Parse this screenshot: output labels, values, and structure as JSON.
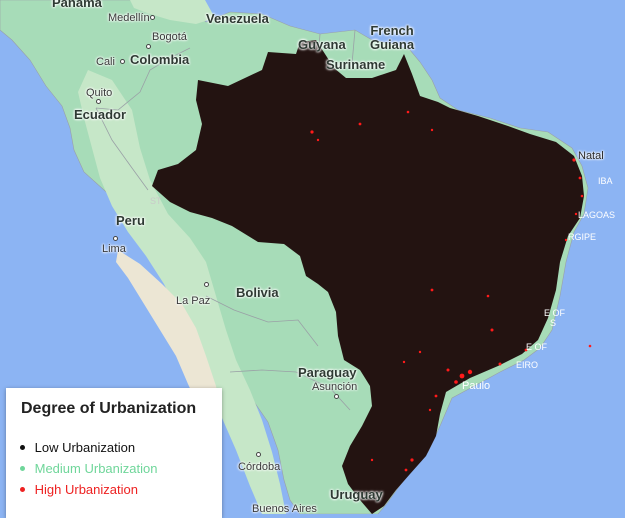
{
  "map": {
    "countries": [
      {
        "id": "panama",
        "label": "Panama"
      },
      {
        "id": "venezuela",
        "label": "Venezuela"
      },
      {
        "id": "colombia",
        "label": "Colombia"
      },
      {
        "id": "guyana",
        "label": "Guyana"
      },
      {
        "id": "french-guiana",
        "label": "French\nGuiana"
      },
      {
        "id": "suriname",
        "label": "Suriname"
      },
      {
        "id": "ecuador",
        "label": "Ecuador"
      },
      {
        "id": "peru",
        "label": "Peru"
      },
      {
        "id": "bolivia",
        "label": "Bolivia"
      },
      {
        "id": "paraguay",
        "label": "Paraguay"
      },
      {
        "id": "uruguay",
        "label": "Uruguay"
      }
    ],
    "cities": [
      {
        "id": "medellin",
        "label": "Medellín"
      },
      {
        "id": "bogota",
        "label": "Bogotá"
      },
      {
        "id": "cali",
        "label": "Cali"
      },
      {
        "id": "quito",
        "label": "Quito"
      },
      {
        "id": "lima",
        "label": "Lima"
      },
      {
        "id": "la-paz",
        "label": "La Paz"
      },
      {
        "id": "asuncion",
        "label": "Asunción"
      },
      {
        "id": "cordoba",
        "label": "Córdoba"
      },
      {
        "id": "buenos-aires",
        "label": "Buenos Aires"
      },
      {
        "id": "natal",
        "label": "Natal"
      },
      {
        "id": "paulo",
        "label": "Paulo"
      }
    ],
    "state_fragments": [
      {
        "id": "frag-iba",
        "label": "IBA"
      },
      {
        "id": "frag-lagoas",
        "label": "LAGOAS"
      },
      {
        "id": "frag-rgipe",
        "label": "RGIPE"
      },
      {
        "id": "frag-e-of-1",
        "label": "E OF"
      },
      {
        "id": "frag-s-1",
        "label": "S"
      },
      {
        "id": "frag-e-of-2",
        "label": "E OF"
      },
      {
        "id": "frag-eiro",
        "label": "EIRO"
      },
      {
        "id": "frag-st",
        "label": "ST"
      }
    ],
    "colors": {
      "ocean": "#8cb4f3",
      "land_green": "#a7dcb8",
      "land_light": "#c6e7c8",
      "desert": "#ece6d4",
      "brazil_fill": "#231311",
      "high_urban_dots": "#ff1a1a",
      "borders": "#9aa0a6"
    }
  },
  "legend": {
    "title": "Degree of Urbanization",
    "items": [
      {
        "id": "low",
        "label": "Low Urbanization",
        "color": "#111111"
      },
      {
        "id": "medium",
        "label": "Medium Urbanization",
        "color": "#6fd69a"
      },
      {
        "id": "high",
        "label": "High Urbanization",
        "color": "#ee2222"
      }
    ]
  }
}
